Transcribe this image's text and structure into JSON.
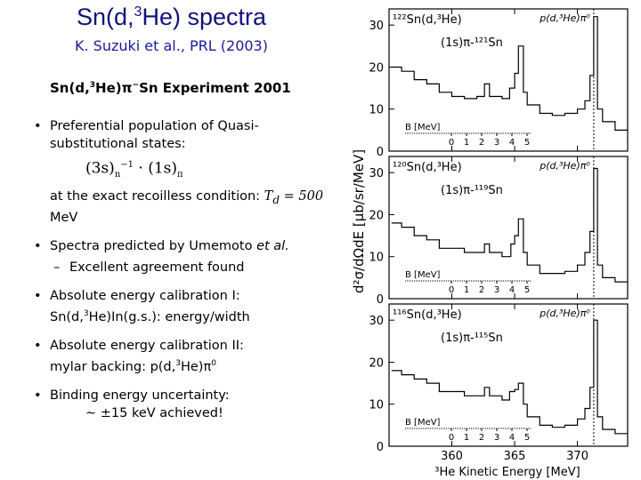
{
  "slide": {
    "title_pre": "Sn(d,",
    "title_sup": "3",
    "title_post": "He) spectra",
    "subtitle": "K. Suzuki et al., PRL (2003)",
    "heading_pre": "Sn(d,",
    "heading_sup": "3",
    "heading_mid": "He)",
    "heading_pi": "π",
    "heading_pisup": "−",
    "heading_post": "Sn Experiment 2001"
  },
  "bullets": {
    "b1_text": "Preferential population of Quasi-substitutional states:",
    "b1_formula_a": "(3s)",
    "b1_formula_sub": "n",
    "b1_formula_sup": "−1",
    "b1_formula_b": "· (1s)",
    "b1_formula_pi": "π",
    "b1_cond": "at the exact recoilless condition:",
    "b1_td": "T",
    "b1_td_sub": "d",
    "b1_td_val": " = 500",
    "b1_unit": "MeV",
    "b2_text_a": "Spectra predicted by Umemoto",
    "b2_text_em": "et al.",
    "b2_sub": "Excellent agreement found",
    "b3_line1": "Absolute energy calibration I:",
    "b3_line2_a": "Sn(d,",
    "b3_line2_sup": "3",
    "b3_line2_b": "He)In(g.s.): energy/width",
    "b4_line1": "Absolute energy calibration II:",
    "b4_line2_a": "mylar backing:  p(d,",
    "b4_line2_sup": "3",
    "b4_line2_b": "He)π",
    "b4_line2_sup2": "0",
    "b5_line1": "Binding energy uncertainty:",
    "b5_line2": "∼ ±15 keV achieved!"
  },
  "chart_data": {
    "type": "line",
    "xlabel": "³He Kinetic Energy [MeV]",
    "ylabel": "d²σ/dΩdE [μb/sr/MeV]",
    "xlim": [
      355,
      374
    ],
    "x_ticks": [
      360,
      365,
      370
    ],
    "y_ticks": [
      0,
      10,
      20,
      30
    ],
    "ylim": [
      0,
      33
    ],
    "panels": [
      {
        "target": "¹²²Sn(d,³He)",
        "peak_label": "(1s)π-¹²¹Sn",
        "pi0_label": "p(d,³He)π⁰",
        "inset_label": "B [MeV]",
        "inset_ticks": [
          "0",
          "1",
          "2",
          "3",
          "4",
          "5"
        ],
        "points": [
          [
            355.2,
            20
          ],
          [
            356,
            19
          ],
          [
            357,
            17
          ],
          [
            358,
            16
          ],
          [
            359,
            14
          ],
          [
            360,
            13
          ],
          [
            361,
            12.5
          ],
          [
            362,
            13
          ],
          [
            362.6,
            16
          ],
          [
            363,
            13
          ],
          [
            364,
            12.5
          ],
          [
            364.6,
            15
          ],
          [
            365,
            18.5
          ],
          [
            365.3,
            25
          ],
          [
            365.7,
            14
          ],
          [
            366,
            11
          ],
          [
            367,
            9
          ],
          [
            368,
            8.5
          ],
          [
            369,
            9
          ],
          [
            370,
            10
          ],
          [
            370.6,
            12
          ],
          [
            371,
            18
          ],
          [
            371.3,
            32
          ],
          [
            371.6,
            10
          ],
          [
            372,
            7
          ],
          [
            373,
            5
          ],
          [
            374,
            5
          ]
        ]
      },
      {
        "target": "¹²⁰Sn(d,³He)",
        "peak_label": "(1s)π-¹¹⁹Sn",
        "pi0_label": "p(d,³He)π⁰",
        "inset_label": "B [MeV]",
        "inset_ticks": [
          "0",
          "1",
          "2",
          "3",
          "4",
          "5"
        ],
        "points": [
          [
            355.2,
            18
          ],
          [
            356,
            17
          ],
          [
            357,
            15
          ],
          [
            358,
            14
          ],
          [
            359,
            12
          ],
          [
            360,
            12
          ],
          [
            361,
            11
          ],
          [
            362,
            11
          ],
          [
            362.6,
            13
          ],
          [
            363,
            11
          ],
          [
            364,
            10
          ],
          [
            364.7,
            13
          ],
          [
            365,
            15
          ],
          [
            365.3,
            19
          ],
          [
            365.7,
            11
          ],
          [
            366,
            8
          ],
          [
            367,
            6
          ],
          [
            368,
            6
          ],
          [
            369,
            6.5
          ],
          [
            370,
            8
          ],
          [
            370.6,
            11
          ],
          [
            371,
            16
          ],
          [
            371.3,
            31
          ],
          [
            371.6,
            8
          ],
          [
            372,
            5
          ],
          [
            373,
            4
          ],
          [
            374,
            4
          ]
        ]
      },
      {
        "target": "¹¹⁶Sn(d,³He)",
        "peak_label": "(1s)π-¹¹⁵Sn",
        "pi0_label": "p(d,³He)π⁰",
        "inset_label": "B [MeV]",
        "inset_ticks": [
          "0",
          "1",
          "2",
          "3",
          "4",
          "5"
        ],
        "points": [
          [
            355.2,
            18
          ],
          [
            356,
            17
          ],
          [
            357,
            16
          ],
          [
            358,
            15
          ],
          [
            359,
            13
          ],
          [
            360,
            13
          ],
          [
            361,
            12
          ],
          [
            362,
            12
          ],
          [
            362.6,
            14
          ],
          [
            363,
            12
          ],
          [
            364,
            11
          ],
          [
            364.6,
            13
          ],
          [
            365,
            13.5
          ],
          [
            365.3,
            15
          ],
          [
            365.7,
            10
          ],
          [
            366,
            7
          ],
          [
            367,
            5
          ],
          [
            368,
            4.5
          ],
          [
            369,
            5
          ],
          [
            370,
            6.5
          ],
          [
            370.6,
            9
          ],
          [
            371,
            14
          ],
          [
            371.3,
            30
          ],
          [
            371.6,
            7
          ],
          [
            372,
            4
          ],
          [
            373,
            3
          ],
          [
            374,
            3
          ]
        ]
      }
    ]
  }
}
